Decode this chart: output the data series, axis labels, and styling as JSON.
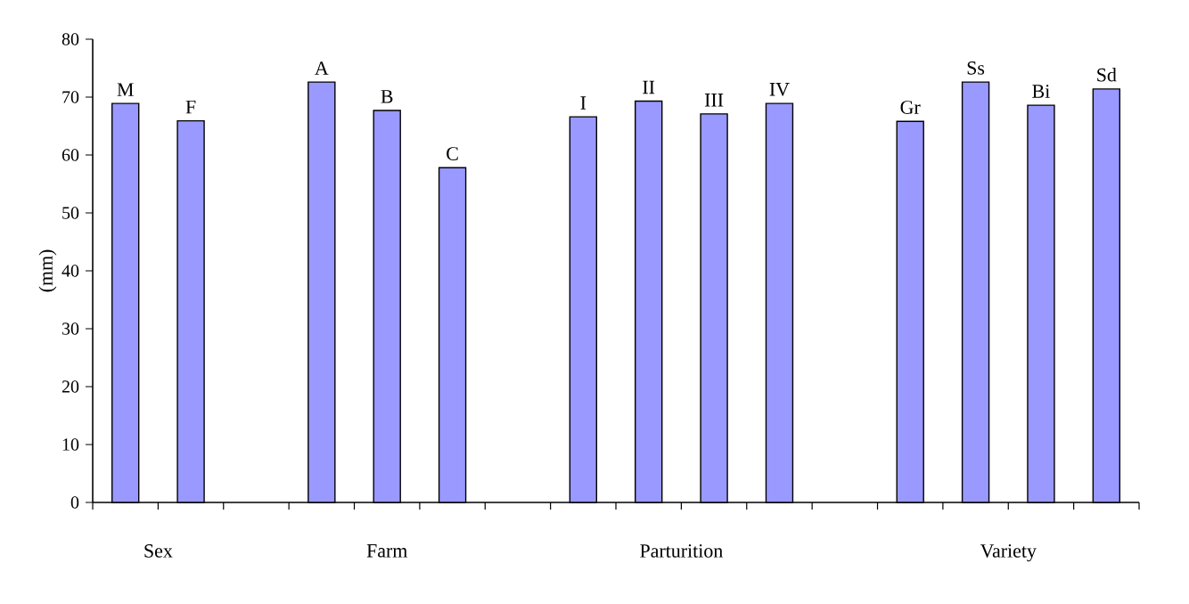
{
  "chart_data": {
    "type": "bar",
    "ylabel": "(mm)",
    "categories": [
      "M",
      "F",
      null,
      "A",
      "B",
      "C",
      null,
      "I",
      "II",
      "III",
      "IV",
      null,
      "Gr",
      "Ss",
      "Bi",
      "Sd"
    ],
    "values": [
      68.9,
      65.9,
      null,
      72.6,
      67.7,
      57.8,
      null,
      66.6,
      69.3,
      67.1,
      68.9,
      null,
      65.8,
      72.6,
      68.6,
      71.4
    ],
    "color": "#9999ff",
    "ylim": [
      0,
      80
    ],
    "yticks": [
      0,
      10,
      20,
      30,
      40,
      50,
      60,
      70,
      80
    ],
    "grid": false,
    "annotations": [
      "Sex",
      "Farm",
      "Parturition",
      "Variety"
    ]
  }
}
